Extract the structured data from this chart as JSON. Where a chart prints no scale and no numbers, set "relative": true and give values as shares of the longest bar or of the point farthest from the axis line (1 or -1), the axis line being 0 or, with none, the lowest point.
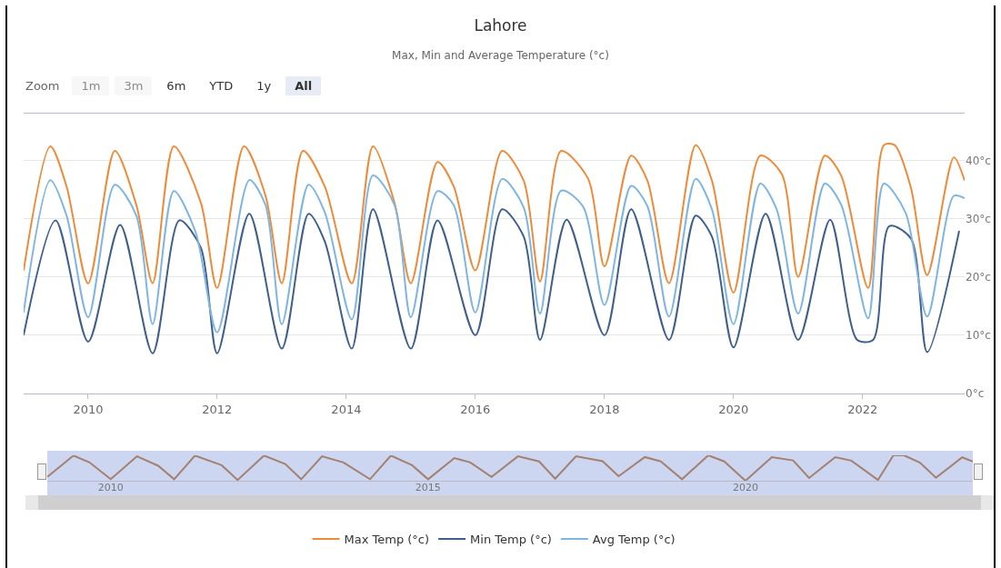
{
  "chart_data": [
    {
      "type": "line",
      "title": "Lahore",
      "subtitle": "Max, Min and Average Temperature (°c)",
      "annotations": [
        "Zoom",
        "1m",
        "3m",
        "6m",
        "YTD",
        "1y",
        "All"
      ],
      "series": [
        {
          "name": "Max Temp (°c)",
          "color": "#ee8b3a",
          "x": [
            "2009-01",
            "2009-06",
            "2009-09",
            "2010-01",
            "2010-06",
            "2010-10",
            "2011-01",
            "2011-05",
            "2011-10",
            "2012-01",
            "2012-06",
            "2012-10",
            "2013-01",
            "2013-05",
            "2013-09",
            "2014-02",
            "2014-06",
            "2014-10",
            "2015-01",
            "2015-06",
            "2015-09",
            "2016-01",
            "2016-06",
            "2016-10",
            "2017-01",
            "2017-05",
            "2017-10",
            "2018-01",
            "2018-06",
            "2018-09",
            "2019-01",
            "2019-06",
            "2019-09",
            "2020-01",
            "2020-06",
            "2020-10",
            "2021-01",
            "2021-06",
            "2021-09",
            "2022-02",
            "2022-05",
            "2022-07",
            "2022-10",
            "2023-01",
            "2023-06",
            "2023-08"
          ],
          "values": [
            21.1,
            42.4,
            35.5,
            18.9,
            41.6,
            32.3,
            18.9,
            42.4,
            32.7,
            18.1,
            42.4,
            33.9,
            18.9,
            41.6,
            35.5,
            18.9,
            42.4,
            32.7,
            18.9,
            39.7,
            35.5,
            21.1,
            41.6,
            36.5,
            19.2,
            41.6,
            36.8,
            21.8,
            40.8,
            36.5,
            18.9,
            42.6,
            36.5,
            17.3,
            40.8,
            37.6,
            20.0,
            40.8,
            37.4,
            18.1,
            42.6,
            42.6,
            35.3,
            20.3,
            40.5,
            36.5
          ]
        },
        {
          "name": "Min Temp (°c)",
          "color": "#3f5f8c",
          "x": [
            "2009-01",
            "2009-07",
            "2010-01",
            "2010-07",
            "2011-01",
            "2011-06",
            "2011-10",
            "2012-01",
            "2012-07",
            "2013-01",
            "2013-06",
            "2013-09",
            "2014-02",
            "2014-06",
            "2015-01",
            "2015-06",
            "2016-01",
            "2016-06",
            "2016-10",
            "2017-01",
            "2017-06",
            "2018-01",
            "2018-06",
            "2019-01",
            "2019-06",
            "2019-09",
            "2020-01",
            "2020-07",
            "2021-01",
            "2021-07",
            "2021-12",
            "2022-03",
            "2022-06",
            "2022-10",
            "2023-01",
            "2023-07"
          ],
          "values": [
            10.0,
            29.7,
            8.9,
            28.9,
            6.9,
            29.7,
            25.0,
            6.9,
            30.8,
            7.7,
            30.8,
            26.1,
            7.7,
            31.6,
            7.7,
            29.7,
            10.0,
            31.6,
            26.9,
            9.2,
            29.8,
            10.0,
            31.6,
            9.2,
            30.5,
            26.9,
            7.9,
            30.8,
            9.2,
            29.8,
            9.2,
            9.2,
            28.7,
            26.6,
            7.1,
            27.9
          ]
        },
        {
          "name": "Avg Temp (°c)",
          "color": "#7fb5e2",
          "x": [
            "2009-01",
            "2009-06",
            "2009-09",
            "2010-01",
            "2010-06",
            "2010-10",
            "2011-01",
            "2011-05",
            "2011-09",
            "2012-01",
            "2012-07",
            "2012-10",
            "2013-01",
            "2013-06",
            "2013-09",
            "2014-02",
            "2014-06",
            "2014-10",
            "2015-01",
            "2015-06",
            "2015-09",
            "2016-01",
            "2016-06",
            "2016-10",
            "2017-01",
            "2017-05",
            "2017-09",
            "2018-01",
            "2018-06",
            "2018-09",
            "2019-01",
            "2019-06",
            "2019-09",
            "2020-01",
            "2020-06",
            "2020-09",
            "2021-01",
            "2021-06",
            "2021-09",
            "2022-02",
            "2022-05",
            "2022-09",
            "2023-01",
            "2023-06",
            "2023-08"
          ],
          "values": [
            13.9,
            36.6,
            30.5,
            13.1,
            35.8,
            30.5,
            11.9,
            34.7,
            27.7,
            10.5,
            36.6,
            32.3,
            11.9,
            35.8,
            31.1,
            12.7,
            37.4,
            32.3,
            13.1,
            34.7,
            32.3,
            13.9,
            36.8,
            31.9,
            13.7,
            34.8,
            32.1,
            15.2,
            35.6,
            32.1,
            13.2,
            36.8,
            31.6,
            11.9,
            36.0,
            31.6,
            13.7,
            36.0,
            32.4,
            12.9,
            36.0,
            31.0,
            13.2,
            33.9,
            33.5
          ]
        }
      ],
      "xlim": [
        "2009-01-01",
        "2023-08-01"
      ],
      "xticks": [
        "2010",
        "2012",
        "2014",
        "2016",
        "2018",
        "2020",
        "2022"
      ],
      "ylim": [
        0,
        48
      ],
      "yticks": [
        {
          "value": 0,
          "label": "0°c"
        },
        {
          "value": 10,
          "label": "10°c"
        },
        {
          "value": 20,
          "label": "20°c"
        },
        {
          "value": 30,
          "label": "30°c"
        },
        {
          "value": 40,
          "label": "40°c"
        }
      ],
      "grid": "y",
      "legend": "bottom",
      "marker": "none",
      "line_style": "solid"
    },
    {
      "type": "line",
      "relative": true,
      "series": [
        {
          "color": "#a3806f",
          "x": [
            "2009-01",
            "2009-06",
            "2009-09",
            "2010-01",
            "2010-06",
            "2010-10",
            "2011-01",
            "2011-05",
            "2011-10",
            "2012-01",
            "2012-06",
            "2012-10",
            "2013-01",
            "2013-05",
            "2013-09",
            "2014-02",
            "2014-06",
            "2014-10",
            "2015-01",
            "2015-06",
            "2015-09",
            "2016-01",
            "2016-06",
            "2016-10",
            "2017-01",
            "2017-05",
            "2017-10",
            "2018-01",
            "2018-06",
            "2018-09",
            "2019-01",
            "2019-06",
            "2019-09",
            "2020-01",
            "2020-06",
            "2020-10",
            "2021-01",
            "2021-06",
            "2021-09",
            "2022-02",
            "2022-05",
            "2022-07",
            "2022-10",
            "2023-01",
            "2023-06",
            "2023-08"
          ],
          "values": [
            0.15,
            0.99,
            0.72,
            0.06,
            0.96,
            0.59,
            0.06,
            0.99,
            0.61,
            0.03,
            0.99,
            0.66,
            0.06,
            0.96,
            0.72,
            0.06,
            0.99,
            0.61,
            0.06,
            0.89,
            0.72,
            0.15,
            0.96,
            0.76,
            0.08,
            0.96,
            0.77,
            0.18,
            0.93,
            0.76,
            0.06,
            1,
            0.76,
            0,
            0.93,
            0.8,
            0.11,
            0.93,
            0.79,
            0.03,
            1,
            1,
            0.71,
            0.12,
            0.92,
            0.76
          ]
        }
      ],
      "xlim": [
        "2009-01-01",
        "2023-08-01"
      ],
      "xticks": [
        "2010",
        "2015",
        "2020"
      ],
      "tick_labels": "x",
      "grid": false,
      "legend": false,
      "marker": "none",
      "line_style": "solid"
    }
  ]
}
